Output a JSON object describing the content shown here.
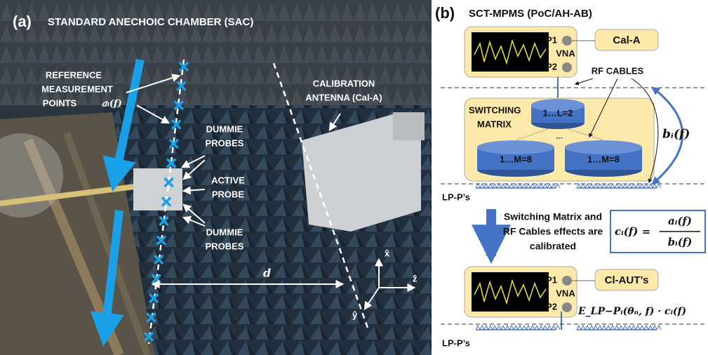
{
  "panel_a": {
    "label": "(a)",
    "title": "STANDARD ANECHOIC CHAMBER (SAC)",
    "reference_points": [
      "REFERENCE",
      "MEASUREMENT",
      "POINTS"
    ],
    "reference_symbol": "𝑎ᵢ(𝒇)",
    "calibration_antenna": [
      "CALIBRATION",
      "ANTENNA (Cal-A)"
    ],
    "dummie_probes_top": [
      "DUMMIE",
      "PROBES"
    ],
    "active_probe": [
      "ACTIVE",
      "PROBE"
    ],
    "dummie_probes_bottom": [
      "DUMMIE",
      "PROBES"
    ],
    "distance": "d",
    "axes": {
      "x": "x̂",
      "z": "ẑ",
      "y": "ŷ"
    }
  },
  "panel_b": {
    "label": "(b)",
    "title": "SCT-MPMS (PoC/AH-AB)",
    "top_vna": {
      "p1": "P1",
      "vna": "VNA",
      "p2": "P2"
    },
    "cal_a": "Cal-A",
    "rf_cables": "RF CABLES",
    "switching_matrix": [
      "SWITCHING",
      "MATRIX"
    ],
    "level_l": "1…L=2",
    "dots": "…",
    "level_m": [
      "1…M=8",
      "1…M=8"
    ],
    "b_symbol": "𝒃ᵢ(𝒇)",
    "lpp_top": "LP-P’s",
    "calibrated_text": [
      "Switching Matrix and",
      "RF Cables effects are",
      "calibrated"
    ],
    "equation": {
      "lhs": "𝒄ᵢ(𝒇) =",
      "numerator": "𝒂ᵢ(𝒇)",
      "denominator": "𝒃ᵢ(𝒇)"
    },
    "bottom_vna": {
      "p1": "P1",
      "vna": "VNA",
      "p2": "P2"
    },
    "cl_aut": "Cl-AUT’s",
    "field_expression": "𝑬_LP−Pᵢ(𝜽ₙ, 𝒇) · 𝒄ᵢ(𝒇)",
    "lpp_bottom": "LP-P’s"
  }
}
